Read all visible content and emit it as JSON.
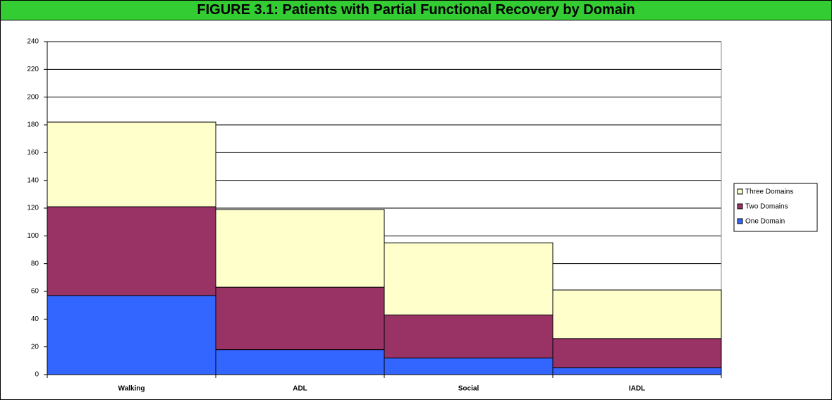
{
  "chart_data": {
    "type": "bar",
    "stacked": true,
    "title": "FIGURE 3.1: Patients with Partial Functional Recovery by Domain",
    "categories": [
      "Walking",
      "ADL",
      "Social",
      "IADL"
    ],
    "series": [
      {
        "name": "One Domain",
        "color": "#3366ff",
        "values": [
          57,
          18,
          12,
          5
        ]
      },
      {
        "name": "Two Domains",
        "color": "#993366",
        "values": [
          64,
          45,
          31,
          21
        ]
      },
      {
        "name": "Three Domains",
        "color": "#ffffcc",
        "values": [
          61,
          56,
          52,
          35
        ]
      }
    ],
    "ylim": [
      0,
      240
    ],
    "yticks": [
      0,
      20,
      40,
      60,
      80,
      100,
      120,
      140,
      160,
      180,
      200,
      220,
      240
    ],
    "grid": true,
    "legend": "right"
  }
}
